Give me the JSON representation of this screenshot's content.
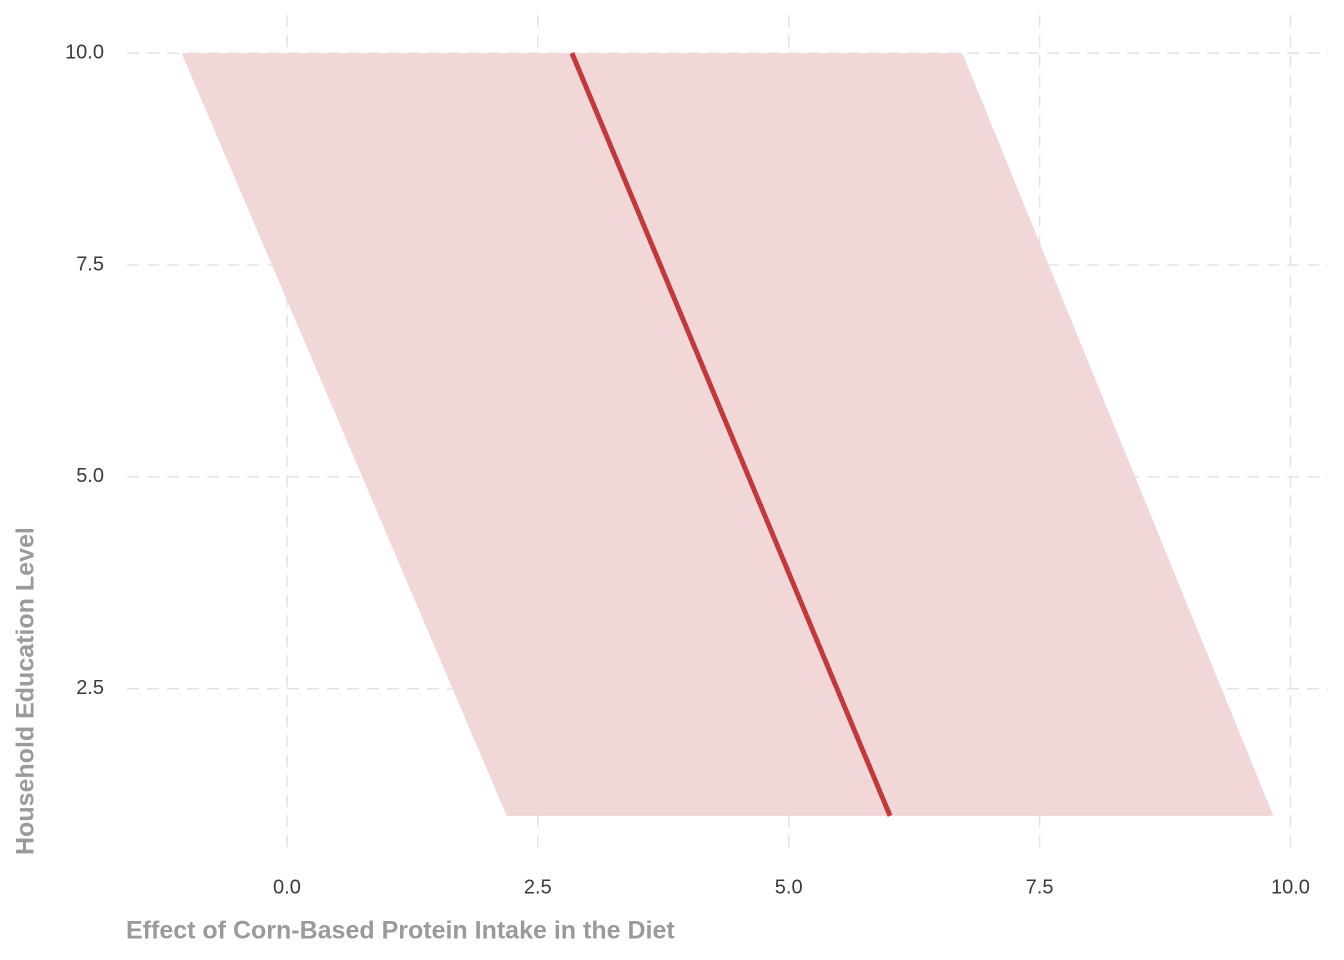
{
  "chart_data": {
    "type": "line",
    "x_label": "Effect of Corn-Based Protein Intake in the Diet",
    "y_label": "Household Education Level",
    "y": [
      1,
      10
    ],
    "series": [
      {
        "values": [
          6.01,
          2.84
        ],
        "lower": [
          2.19,
          -1.05
        ],
        "upper": [
          9.83,
          6.73
        ],
        "color": "#c0393b",
        "band_color": "#f2d7d8"
      }
    ],
    "xlim": [
      -1.594,
      10.374
    ],
    "xticks": [
      {
        "value": 0,
        "label": "0.0"
      },
      2.5,
      {
        "value": 5,
        "label": "5.0"
      },
      7.5,
      {
        "value": 10,
        "label": "10.0"
      }
    ],
    "ylim": [
      0.55,
      10.45
    ],
    "yticks": [
      2.5,
      {
        "value": 5,
        "label": "5.0"
      },
      7.5,
      {
        "value": 10,
        "label": "10.0"
      }
    ],
    "grid": true
  }
}
